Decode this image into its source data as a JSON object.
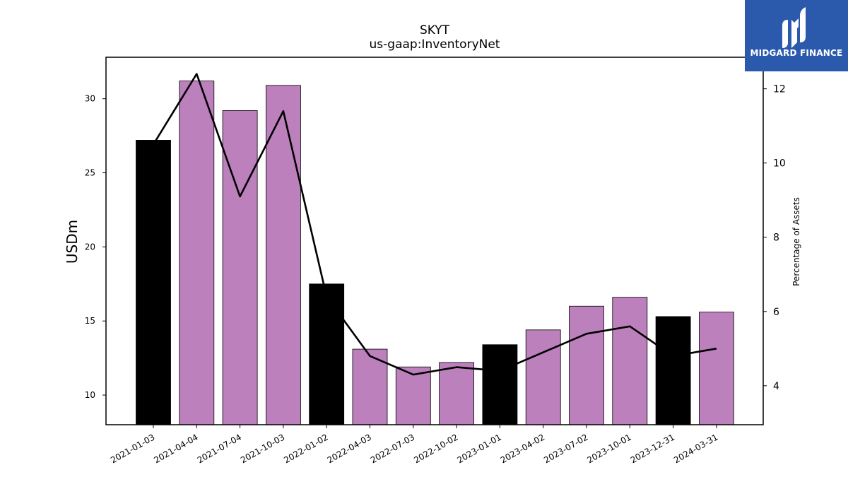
{
  "chart_data": {
    "type": "bar",
    "title": "SKYT",
    "subtitle": "us-gaap:InventoryNet",
    "ylabel": "USDm",
    "y2label": "Percentage of Assets",
    "categories": [
      "2021-01-03",
      "2021-04-04",
      "2021-07-04",
      "2021-10-03",
      "2022-01-02",
      "2022-04-03",
      "2022-07-03",
      "2022-10-02",
      "2023-01-01",
      "2023-04-02",
      "2023-07-02",
      "2023-10-01",
      "2023-12-31",
      "2024-03-31"
    ],
    "series": [
      {
        "type": "bar",
        "values": [
          27.2,
          31.2,
          29.2,
          30.9,
          17.5,
          13.1,
          11.9,
          12.2,
          13.4,
          14.4,
          16.0,
          16.6,
          15.3,
          15.6
        ],
        "colors": [
          "#000000",
          "#bc80bd",
          "#bc80bd",
          "#bc80bd",
          "#000000",
          "#bc80bd",
          "#bc80bd",
          "#bc80bd",
          "#000000",
          "#bc80bd",
          "#bc80bd",
          "#bc80bd",
          "#000000",
          "#bc80bd"
        ]
      },
      {
        "type": "line",
        "axis": "right",
        "color": "#000000",
        "values": [
          10.5,
          12.4,
          9.1,
          11.4,
          6.4,
          4.8,
          4.3,
          4.5,
          4.4,
          4.9,
          5.4,
          5.6,
          4.8,
          5.0
        ]
      }
    ],
    "ylim": [
      8,
      32.8
    ],
    "yticks": [
      10,
      15,
      20,
      25,
      30
    ],
    "y2lim": [
      2.95,
      12.85
    ],
    "y2ticks": [
      4,
      6,
      8,
      10,
      12
    ],
    "grid": false,
    "legend": "none"
  },
  "logo": {
    "text": "MIDGARD FINANCE",
    "background": "#2b5aad"
  }
}
